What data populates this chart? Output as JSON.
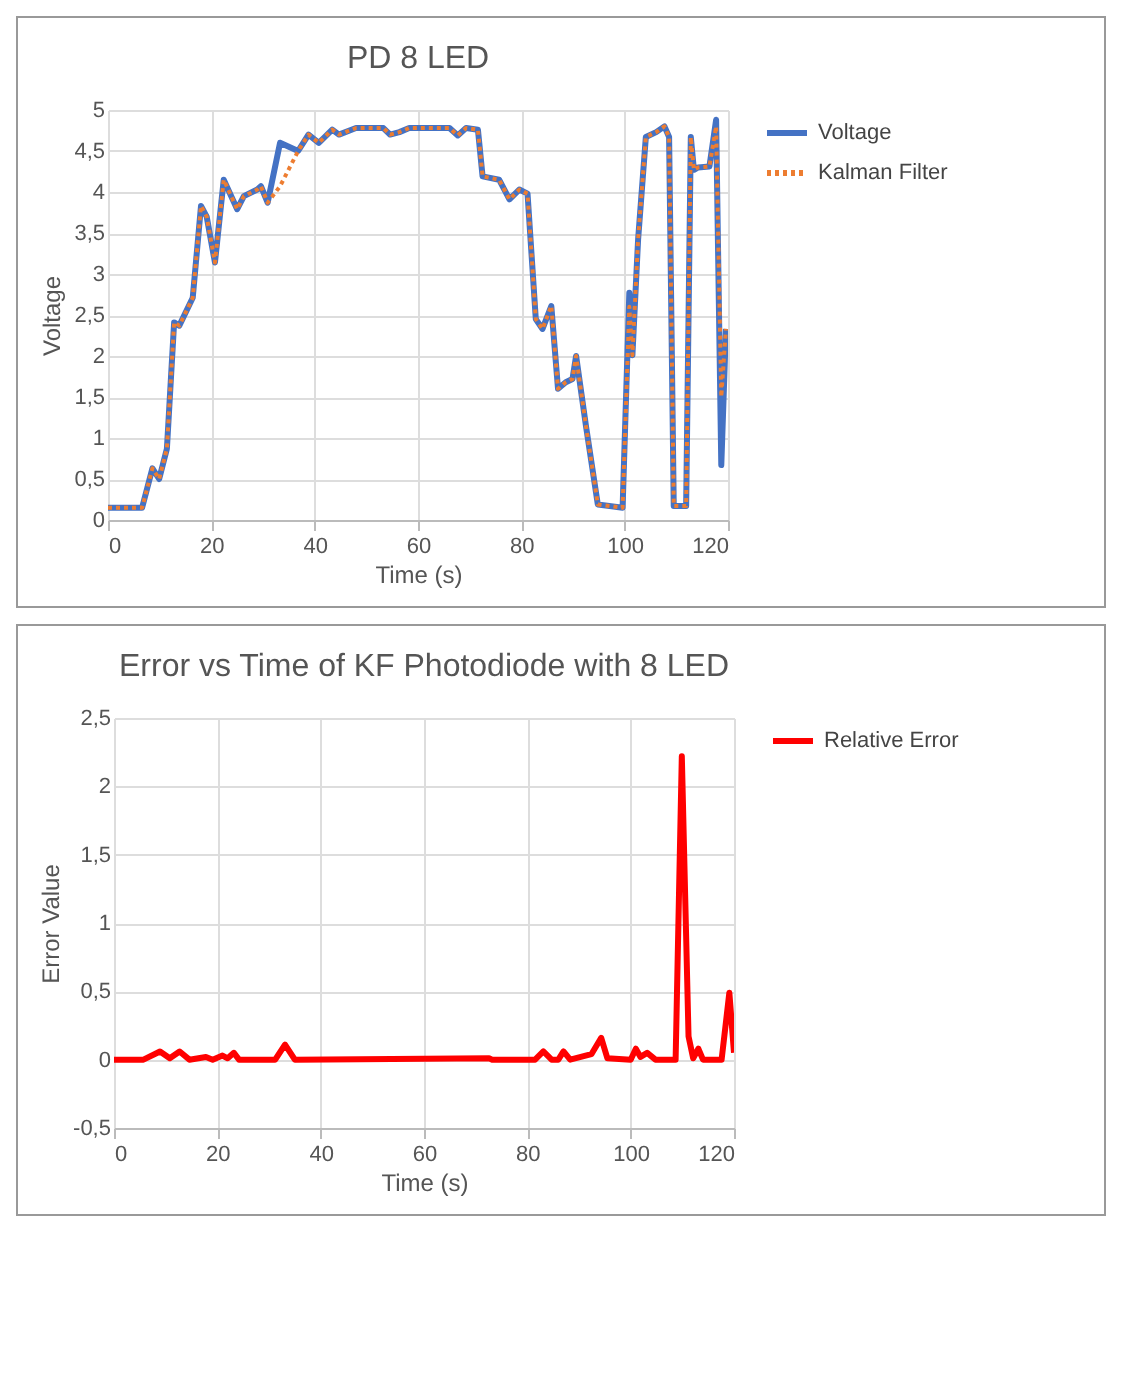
{
  "chart_data": [
    {
      "type": "line",
      "title": "PD 8 LED",
      "xlabel": "Time (s)",
      "ylabel": "Voltage",
      "x": [
        0,
        6.6,
        8.6,
        9.9,
        11.4,
        12.8,
        13.8,
        16.4,
        18,
        19.1,
        20.7,
        22.4,
        25,
        26.3,
        28.9,
        29.6,
        30.9,
        33.3,
        36.8,
        38.8,
        40.8,
        43.4,
        44.7,
        48,
        53.3,
        54.6,
        56.4,
        58.3,
        66.1,
        67.7,
        69.3,
        71.6,
        72.5,
        75.7,
        77.7,
        79.6,
        81.2,
        82.8,
        84.1,
        85.8,
        87.1,
        88.6,
        89.9,
        90.6,
        92.5,
        94.8,
        99.6,
        100.9,
        101.5,
        102.6,
        104.1,
        106.1,
        107.7,
        108.6,
        109.5,
        111.9,
        112.8,
        113.4,
        114.2,
        116.4,
        117.7,
        118.7,
        119.6
      ],
      "series": [
        {
          "name": "Voltage",
          "color": "#4472c4",
          "line_style": "solid",
          "values": [
            0.15,
            0.15,
            0.63,
            0.5,
            0.87,
            2.41,
            2.37,
            2.71,
            3.83,
            3.7,
            3.14,
            4.15,
            3.79,
            3.95,
            4.03,
            4.07,
            3.87,
            4.6,
            4.5,
            4.7,
            4.6,
            4.76,
            4.7,
            4.78,
            4.78,
            4.7,
            4.73,
            4.78,
            4.78,
            4.69,
            4.78,
            4.76,
            4.19,
            4.15,
            3.91,
            4.03,
            3.98,
            2.45,
            2.33,
            2.61,
            1.6,
            1.68,
            1.72,
            2.0,
            1.15,
            0.19,
            0.15,
            2.77,
            2.01,
            3.42,
            4.67,
            4.73,
            4.8,
            4.67,
            0.17,
            0.17,
            4.67,
            4.27,
            4.3,
            4.31,
            4.88,
            0.67,
            2.33
          ]
        },
        {
          "name": "Kalman Filter",
          "color": "#ed7d31",
          "line_style": "dotted",
          "values": [
            0.15,
            0.15,
            0.63,
            0.5,
            0.87,
            2.41,
            2.37,
            2.71,
            3.83,
            3.7,
            3.14,
            4.15,
            3.79,
            3.95,
            4.03,
            4.07,
            3.87,
            4.07,
            4.5,
            4.7,
            4.6,
            4.76,
            4.7,
            4.78,
            4.78,
            4.7,
            4.73,
            4.78,
            4.78,
            4.69,
            4.78,
            4.76,
            4.19,
            4.15,
            3.91,
            4.03,
            3.98,
            2.45,
            2.33,
            2.61,
            1.6,
            1.68,
            1.72,
            2.0,
            1.15,
            0.19,
            0.15,
            2.6,
            2.01,
            3.42,
            4.67,
            4.73,
            4.8,
            4.67,
            0.17,
            0.17,
            4.67,
            4.27,
            4.3,
            4.31,
            4.8,
            1.5,
            2.33
          ]
        }
      ],
      "xlim": [
        0,
        120
      ],
      "xticks": [
        0,
        20,
        40,
        60,
        80,
        100,
        120
      ],
      "ylim": [
        0,
        5
      ],
      "yticks": [
        0,
        {
          "value": 0.5,
          "label": "0,5"
        },
        1,
        {
          "value": 1.5,
          "label": "1,5"
        },
        2,
        {
          "value": 2.5,
          "label": "2,5"
        },
        3,
        {
          "value": 3.5,
          "label": "3,5"
        },
        4,
        {
          "value": 4.5,
          "label": "4,5"
        },
        5
      ],
      "grid": true,
      "legend": "right"
    },
    {
      "type": "line",
      "title": "Error vs Time of KF Photodiode with 8 LED",
      "xlabel": "Time (s)",
      "ylabel": "Error Value",
      "x": [
        0,
        5.7,
        8.9,
        10.8,
        12.7,
        14.6,
        17.8,
        19.1,
        21,
        22,
        23.2,
        24.2,
        31.2,
        33.1,
        35,
        72.6,
        73.2,
        81.5,
        83.1,
        84.7,
        86,
        87,
        88.3,
        92.4,
        94.3,
        95.5,
        100,
        101,
        101.9,
        103.2,
        104.8,
        108.7,
        109.9,
        111.2,
        112.1,
        113.1,
        114,
        117.6,
        119.1,
        120
      ],
      "series": [
        {
          "name": "Relative Error",
          "color": "#ff0000",
          "line_style": "solid",
          "values": [
            0,
            0,
            0.06,
            0.01,
            0.06,
            0,
            0.02,
            0,
            0.03,
            0.01,
            0.05,
            0,
            0,
            0.11,
            0,
            0.01,
            0,
            0,
            0.06,
            0,
            0,
            0.06,
            0,
            0.04,
            0.16,
            0.01,
            0,
            0.08,
            0.02,
            0.05,
            0,
            0,
            2.22,
            0.17,
            0.01,
            0.08,
            0,
            0,
            0.49,
            0.05
          ]
        }
      ],
      "xlim": [
        0,
        120
      ],
      "xticks": [
        0,
        20,
        40,
        60,
        80,
        100,
        120
      ],
      "ylim": [
        -0.5,
        2.5
      ],
      "yticks": [
        {
          "value": -0.5,
          "label": "-0,5"
        },
        0,
        {
          "value": 0.5,
          "label": "0,5"
        },
        1,
        {
          "value": 1.5,
          "label": "1,5"
        },
        2,
        {
          "value": 2.5,
          "label": "2,5"
        }
      ],
      "grid": true,
      "legend": "right"
    }
  ]
}
